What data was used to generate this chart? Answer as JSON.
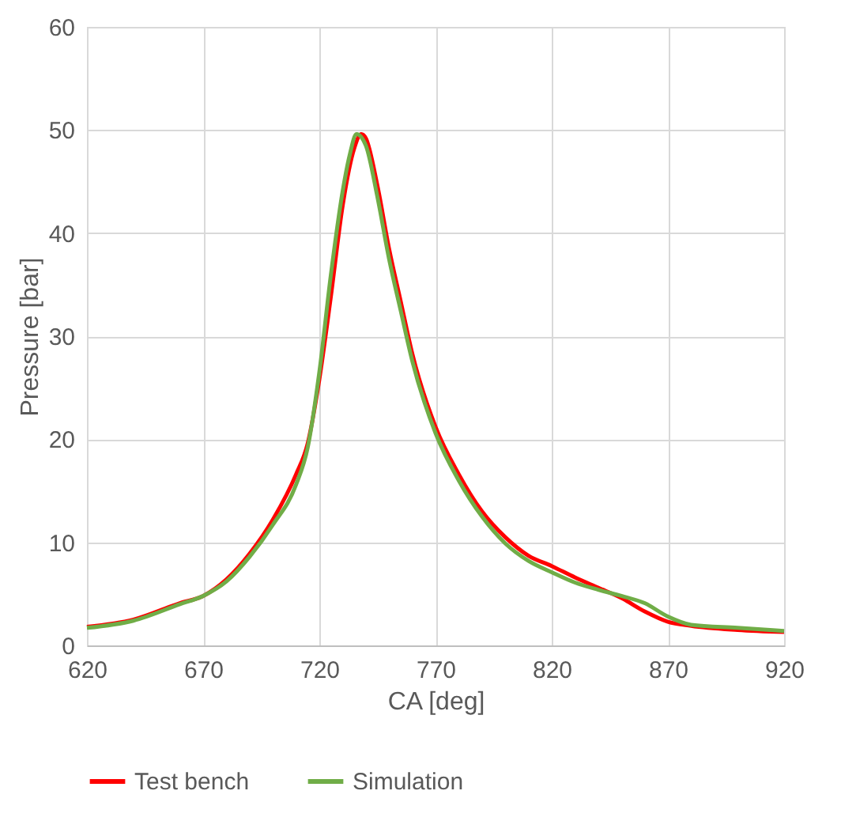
{
  "chart_data": {
    "type": "line",
    "xlabel": "CA [deg]",
    "ylabel": "Pressure [bar]",
    "xlim": [
      620,
      920
    ],
    "xticks": [
      620,
      670,
      720,
      770,
      820,
      870,
      920
    ],
    "ylim": [
      0,
      60
    ],
    "yticks": [
      0,
      10,
      20,
      30,
      40,
      50,
      60
    ],
    "grid": true,
    "legend": "bottom",
    "marker": "none",
    "line_style": "solid",
    "series": [
      {
        "name": "Test bench",
        "color": "#ff0000",
        "x": [
          620,
          640,
          660,
          670,
          680,
          690,
          700,
          710,
          715,
          720,
          725,
          730,
          735,
          738,
          740,
          745,
          750,
          755,
          760,
          770,
          780,
          790,
          800,
          810,
          820,
          830,
          840,
          850,
          860,
          870,
          880,
          900,
          920
        ],
        "values": [
          1.8,
          2.5,
          4.1,
          4.8,
          6.4,
          8.9,
          12.2,
          16.6,
          19.6,
          25.8,
          33.9,
          42.6,
          48.2,
          49.6,
          49.2,
          44.6,
          38.5,
          33.4,
          28.3,
          21.2,
          16.6,
          13.0,
          10.5,
          8.7,
          7.7,
          6.6,
          5.6,
          4.6,
          3.3,
          2.3,
          1.9,
          1.5,
          1.3
        ]
      },
      {
        "name": "Simulation",
        "color": "#70ad47",
        "x": [
          620,
          640,
          660,
          670,
          680,
          690,
          700,
          710,
          715,
          720,
          725,
          730,
          733,
          736,
          740,
          745,
          750,
          755,
          760,
          770,
          780,
          790,
          800,
          810,
          820,
          830,
          840,
          850,
          860,
          870,
          880,
          900,
          920
        ],
        "values": [
          1.7,
          2.4,
          4.0,
          4.8,
          6.2,
          8.6,
          11.7,
          15.6,
          19.2,
          26.5,
          36.0,
          44.0,
          47.5,
          49.6,
          48.5,
          43.5,
          37.5,
          32.5,
          27.6,
          20.6,
          16.0,
          12.5,
          9.9,
          8.2,
          7.1,
          6.1,
          5.4,
          4.8,
          4.1,
          2.8,
          2.0,
          1.7,
          1.4
        ]
      }
    ]
  }
}
